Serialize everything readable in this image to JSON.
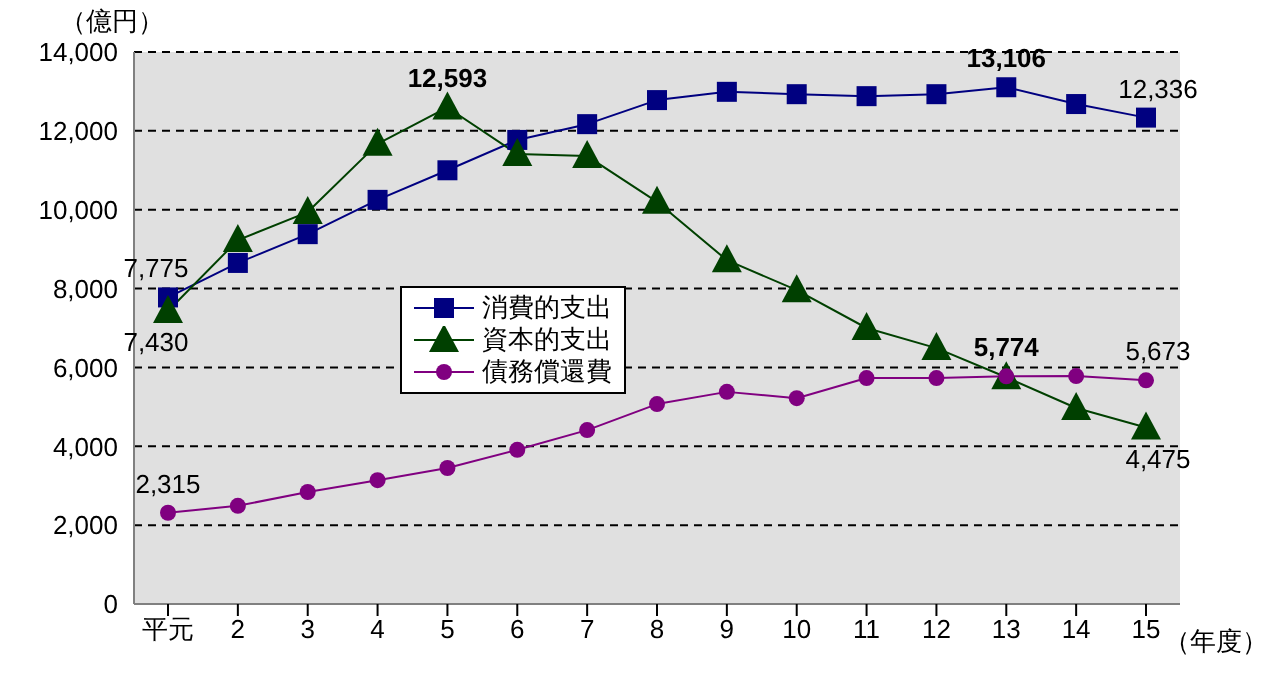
{
  "chart_data": {
    "type": "line",
    "xlabel": "（年度）",
    "ylabel": "（億円）",
    "categories": [
      "平元",
      "2",
      "3",
      "4",
      "5",
      "6",
      "7",
      "8",
      "9",
      "10",
      "11",
      "12",
      "13",
      "14",
      "15"
    ],
    "series": [
      {
        "name": "消費的支出",
        "color": "#000080",
        "marker": "square",
        "values": [
          7775,
          8650,
          9380,
          10250,
          11000,
          11770,
          12170,
          12780,
          12990,
          12930,
          12880,
          12930,
          13106,
          12680,
          12336
        ],
        "value_labels": [
          "7,775",
          null,
          null,
          null,
          null,
          null,
          null,
          null,
          null,
          null,
          null,
          null,
          "13,106",
          null,
          "12,336"
        ]
      },
      {
        "name": "資本的支出",
        "color": "#004000",
        "marker": "triangle",
        "values": [
          7430,
          9230,
          9940,
          11670,
          12593,
          11410,
          11360,
          10200,
          8720,
          7960,
          7000,
          6490,
          5750,
          4970,
          4475
        ],
        "value_labels": [
          "7,430",
          null,
          null,
          null,
          "12,593",
          null,
          null,
          null,
          null,
          null,
          null,
          null,
          null,
          null,
          "4,475"
        ]
      },
      {
        "name": "債務償還費",
        "color": "#800080",
        "marker": "circle",
        "values": [
          2315,
          2490,
          2840,
          3140,
          3450,
          3910,
          4410,
          5070,
          5380,
          5220,
          5730,
          5730,
          5774,
          5780,
          5673
        ],
        "value_labels": [
          "2,315",
          null,
          null,
          null,
          null,
          null,
          null,
          null,
          null,
          null,
          null,
          null,
          "5,774",
          null,
          "5,673"
        ]
      }
    ],
    "ylim": [
      0,
      14000
    ],
    "yticks": [
      {
        "value": 0,
        "label": "0"
      },
      {
        "value": 2000,
        "label": "2,000"
      },
      {
        "value": 4000,
        "label": "4,000"
      },
      {
        "value": 6000,
        "label": "6,000"
      },
      {
        "value": 8000,
        "label": "8,000"
      },
      {
        "value": 10000,
        "label": "10,000"
      },
      {
        "value": 12000,
        "label": "12,000"
      },
      {
        "value": 14000,
        "label": "14,000"
      }
    ],
    "grid": "y",
    "legend": "center left",
    "line_style": "solid"
  }
}
